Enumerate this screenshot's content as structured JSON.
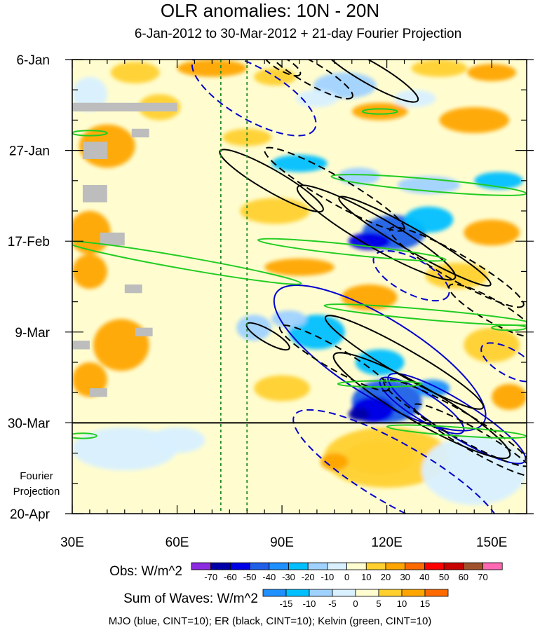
{
  "chart_data": {
    "type": "heatmap",
    "title": "OLR anomalies: 10N - 20N",
    "subtitle": "6-Jan-2012 to 30-Mar-2012 + 21-day Fourier Projection",
    "xlabel": "",
    "ylabel": "",
    "x_range": [
      30,
      160
    ],
    "x_ticks": [
      {
        "value": 30,
        "label": "30E"
      },
      {
        "value": 60,
        "label": "60E"
      },
      {
        "value": 90,
        "label": "90E"
      },
      {
        "value": 120,
        "label": "120E"
      },
      {
        "value": 150,
        "label": "150E"
      }
    ],
    "y_range_days": [
      0,
      105
    ],
    "y_ticks": [
      {
        "day": 0,
        "label": "6-Jan"
      },
      {
        "day": 21,
        "label": "27-Jan"
      },
      {
        "day": 42,
        "label": "17-Feb"
      },
      {
        "day": 63,
        "label": "9-Mar"
      },
      {
        "day": 84,
        "label": "30-Mar"
      },
      {
        "day": 105,
        "label": "20-Apr"
      }
    ],
    "projection_start_day": 84,
    "projection_label": [
      "Fourier",
      "Projection"
    ],
    "dashed_lon_lines": [
      72.5,
      80
    ],
    "obs_legend": {
      "label": "Obs: W/m^2",
      "levels": [
        "-70",
        "-60",
        "-50",
        "-40",
        "-30",
        "-20",
        "-10",
        "0",
        "10",
        "20",
        "30",
        "40",
        "50",
        "60",
        "70"
      ],
      "colors": [
        "#8b2be2",
        "#0000a8",
        "#0000e6",
        "#2060e8",
        "#1e90ff",
        "#00bfff",
        "#a0d2ff",
        "#d8f0ff",
        "#fffdd0",
        "#ffd02e",
        "#ffa500",
        "#ff6a00",
        "#ff0000",
        "#c80000",
        "#a0522d",
        "#ff69b4"
      ]
    },
    "waves_legend": {
      "label": "Sum of Waves: W/m^2",
      "levels": [
        "-15",
        "-10",
        "-5",
        "0",
        "5",
        "10",
        "15"
      ],
      "colors": [
        "#1e90ff",
        "#00bfff",
        "#a0d2ff",
        "#d8f0ff",
        "#fffdd0",
        "#ffd02e",
        "#ffa500",
        "#ff6a00"
      ]
    },
    "footer": "MJO (blue, CINT=10); ER (black, CINT=10); Kelvin (green, CINT=10)",
    "blobs": [
      {
        "lon": 48,
        "day": 3,
        "rx": 7,
        "ry": 2.5,
        "v": 15
      },
      {
        "lon": 70,
        "day": 2,
        "rx": 10,
        "ry": 2,
        "v": 20
      },
      {
        "lon": 88,
        "day": 4,
        "rx": 6,
        "ry": 2,
        "v": 15
      },
      {
        "lon": 135,
        "day": 2,
        "rx": 8,
        "ry": 2,
        "v": 15
      },
      {
        "lon": 150,
        "day": 3,
        "rx": 7,
        "ry": 2,
        "v": 20
      },
      {
        "lon": 108,
        "day": 6,
        "rx": 9,
        "ry": 3,
        "v": -20
      },
      {
        "lon": 100,
        "day": 9,
        "rx": 6,
        "ry": 2,
        "v": -10
      },
      {
        "lon": 35,
        "day": 8,
        "rx": 5,
        "ry": 4,
        "v": -10
      },
      {
        "lon": 40,
        "day": 20,
        "rx": 8,
        "ry": 5,
        "v": 20
      },
      {
        "lon": 55,
        "day": 11,
        "rx": 6,
        "ry": 3,
        "v": 10
      },
      {
        "lon": 118,
        "day": 12,
        "rx": 8,
        "ry": 2,
        "v": 20
      },
      {
        "lon": 145,
        "day": 14,
        "rx": 10,
        "ry": 3,
        "v": 20
      },
      {
        "lon": 128,
        "day": 9,
        "rx": 6,
        "ry": 2,
        "v": -10
      },
      {
        "lon": 80,
        "day": 18,
        "rx": 7,
        "ry": 2,
        "v": 10
      },
      {
        "lon": 95,
        "day": 24,
        "rx": 8,
        "ry": 2,
        "v": -30
      },
      {
        "lon": 112,
        "day": 27,
        "rx": 6,
        "ry": 2,
        "v": -20
      },
      {
        "lon": 132,
        "day": 29,
        "rx": 9,
        "ry": 2,
        "v": -20
      },
      {
        "lon": 152,
        "day": 28,
        "rx": 7,
        "ry": 2,
        "v": -30
      },
      {
        "lon": 35,
        "day": 40,
        "rx": 6,
        "ry": 5,
        "v": 20
      },
      {
        "lon": 35,
        "day": 49,
        "rx": 5,
        "ry": 4,
        "v": 20
      },
      {
        "lon": 88,
        "day": 35,
        "rx": 10,
        "ry": 3,
        "v": 15
      },
      {
        "lon": 122,
        "day": 40,
        "rx": 9,
        "ry": 4,
        "v": -50
      },
      {
        "lon": 115,
        "day": 42,
        "rx": 6,
        "ry": 2,
        "v": -60
      },
      {
        "lon": 132,
        "day": 37,
        "rx": 7,
        "ry": 3,
        "v": -30
      },
      {
        "lon": 150,
        "day": 40,
        "rx": 8,
        "ry": 3,
        "v": 20
      },
      {
        "lon": 95,
        "day": 48,
        "rx": 10,
        "ry": 2,
        "v": 20
      },
      {
        "lon": 140,
        "day": 50,
        "rx": 9,
        "ry": 3,
        "v": 15
      },
      {
        "lon": 115,
        "day": 55,
        "rx": 8,
        "ry": 3,
        "v": 20
      },
      {
        "lon": 82,
        "day": 62,
        "rx": 5,
        "ry": 3,
        "v": -20
      },
      {
        "lon": 100,
        "day": 63,
        "rx": 8,
        "ry": 4,
        "v": -30
      },
      {
        "lon": 92,
        "day": 60,
        "rx": 5,
        "ry": 2,
        "v": -20
      },
      {
        "lon": 44,
        "day": 66,
        "rx": 8,
        "ry": 6,
        "v": 20
      },
      {
        "lon": 35,
        "day": 74,
        "rx": 5,
        "ry": 4,
        "v": 20
      },
      {
        "lon": 118,
        "day": 70,
        "rx": 7,
        "ry": 3,
        "v": -30
      },
      {
        "lon": 150,
        "day": 66,
        "rx": 8,
        "ry": 4,
        "v": 15
      },
      {
        "lon": 120,
        "day": 79,
        "rx": 10,
        "ry": 5,
        "v": -50
      },
      {
        "lon": 116,
        "day": 81,
        "rx": 6,
        "ry": 3,
        "v": -60
      },
      {
        "lon": 112,
        "day": 82,
        "rx": 3,
        "ry": 1.5,
        "v": -70
      },
      {
        "lon": 133,
        "day": 76,
        "rx": 5,
        "ry": 2,
        "v": -40
      },
      {
        "lon": 155,
        "day": 78,
        "rx": 5,
        "ry": 3,
        "v": 20
      },
      {
        "lon": 90,
        "day": 76,
        "rx": 8,
        "ry": 3,
        "v": 15
      },
      {
        "lon": 120,
        "day": 92,
        "rx": 18,
        "ry": 7,
        "v": 10
      },
      {
        "lon": 118,
        "day": 92,
        "rx": 10,
        "ry": 4,
        "v": 15
      },
      {
        "lon": 105,
        "day": 93,
        "rx": 4,
        "ry": 2,
        "v": 20
      },
      {
        "lon": 145,
        "day": 95,
        "rx": 15,
        "ry": 8,
        "v": -5
      },
      {
        "lon": 45,
        "day": 90,
        "rx": 15,
        "ry": 5,
        "v": -5
      },
      {
        "lon": 60,
        "day": 88,
        "rx": 8,
        "ry": 3,
        "v": -5
      }
    ],
    "missing": [
      {
        "lon0": 30,
        "lon1": 60,
        "day0": 10,
        "day1": 12
      },
      {
        "lon0": 47,
        "lon1": 52,
        "day0": 16,
        "day1": 18
      },
      {
        "lon0": 33,
        "lon1": 40,
        "day0": 19,
        "day1": 23
      },
      {
        "lon0": 33,
        "lon1": 40,
        "day0": 29,
        "day1": 33
      },
      {
        "lon0": 38,
        "lon1": 45,
        "day0": 40,
        "day1": 43
      },
      {
        "lon0": 45,
        "lon1": 50,
        "day0": 52,
        "day1": 54
      },
      {
        "lon0": 48,
        "lon1": 53,
        "day0": 62,
        "day1": 64
      },
      {
        "lon0": 30,
        "lon1": 35,
        "day0": 65,
        "day1": 67
      },
      {
        "lon0": 35,
        "lon1": 40,
        "day0": 76,
        "day1": 78
      }
    ],
    "contours": [
      {
        "wave": "MJO",
        "color": "#0000cd",
        "dashed": true,
        "lon": 82,
        "day": 8,
        "rx": 20,
        "ry": 6,
        "rot": 30
      },
      {
        "wave": "MJO",
        "color": "#0000cd",
        "dashed": true,
        "lon": 127,
        "day": 50,
        "rx": 12,
        "ry": 4,
        "rot": 28
      },
      {
        "wave": "MJO",
        "color": "#0000cd",
        "dashed": true,
        "lon": 155,
        "day": 70,
        "rx": 9,
        "ry": 3,
        "rot": 30
      },
      {
        "wave": "MJO",
        "color": "#0000cd",
        "dashed": true,
        "lon": 123,
        "day": 96,
        "rx": 34,
        "ry": 7,
        "rot": 30
      },
      {
        "wave": "MJO",
        "color": "#0000cd",
        "dashed": false,
        "lon": 118,
        "day": 69,
        "rx": 35,
        "ry": 9,
        "rot": 32
      },
      {
        "wave": "MJO",
        "color": "#0000cd",
        "dashed": false,
        "lon": 140,
        "day": 83,
        "rx": 23,
        "ry": 4,
        "rot": 32
      },
      {
        "wave": "MJO",
        "color": "#0000cd",
        "dashed": false,
        "lon": 130,
        "day": 80,
        "rx": 14,
        "ry": 3,
        "rot": 32
      },
      {
        "wave": "ER",
        "color": "#000000",
        "dashed": false,
        "lon": 115,
        "day": 3,
        "rx": 16,
        "ry": 2.5,
        "rot": 30
      },
      {
        "wave": "ER",
        "color": "#000000",
        "dashed": true,
        "lon": 98,
        "day": 3,
        "rx": 14,
        "ry": 2.5,
        "rot": 30
      },
      {
        "wave": "ER",
        "color": "#000000",
        "dashed": true,
        "lon": 90,
        "day": 1,
        "rx": 6,
        "ry": 1.5,
        "rot": 30
      },
      {
        "wave": "ER",
        "color": "#000000",
        "dashed": false,
        "lon": 87,
        "day": 28,
        "rx": 17,
        "ry": 2.5,
        "rot": 30
      },
      {
        "wave": "ER",
        "color": "#000000",
        "dashed": true,
        "lon": 105,
        "day": 30,
        "rx": 23,
        "ry": 3,
        "rot": 30
      },
      {
        "wave": "ER",
        "color": "#000000",
        "dashed": false,
        "lon": 117,
        "day": 40,
        "rx": 26,
        "ry": 3.5,
        "rot": 30
      },
      {
        "wave": "ER",
        "color": "#000000",
        "dashed": false,
        "lon": 128,
        "day": 42,
        "rx": 25,
        "ry": 2.5,
        "rot": 30
      },
      {
        "wave": "ER",
        "color": "#000000",
        "dashed": true,
        "lon": 140,
        "day": 48,
        "rx": 22,
        "ry": 3,
        "rot": 30
      },
      {
        "wave": "ER",
        "color": "#000000",
        "dashed": true,
        "lon": 150,
        "day": 58,
        "rx": 14,
        "ry": 2.5,
        "rot": 30
      },
      {
        "wave": "ER",
        "color": "#000000",
        "dashed": false,
        "lon": 86,
        "day": 64,
        "rx": 7,
        "ry": 1.5,
        "rot": 30
      },
      {
        "wave": "ER",
        "color": "#000000",
        "dashed": true,
        "lon": 105,
        "day": 69,
        "rx": 18,
        "ry": 2.5,
        "rot": 30
      },
      {
        "wave": "ER",
        "color": "#000000",
        "dashed": false,
        "lon": 125,
        "day": 70,
        "rx": 26,
        "ry": 3,
        "rot": 30
      },
      {
        "wave": "ER",
        "color": "#000000",
        "dashed": false,
        "lon": 130,
        "day": 80,
        "rx": 29,
        "ry": 4,
        "rot": 30
      },
      {
        "wave": "ER",
        "color": "#000000",
        "dashed": true,
        "lon": 140,
        "day": 84,
        "rx": 24,
        "ry": 3,
        "rot": 30
      },
      {
        "wave": "ER",
        "color": "#000000",
        "dashed": true,
        "lon": 145,
        "day": 88,
        "rx": 20,
        "ry": 2.5,
        "rot": 30
      },
      {
        "wave": "Kelvin",
        "color": "#22cc22",
        "dashed": false,
        "lon": 132,
        "day": 29,
        "rx": 28,
        "ry": 1.4,
        "rot": 5
      },
      {
        "wave": "Kelvin",
        "color": "#22cc22",
        "dashed": false,
        "lon": 62,
        "day": 47,
        "rx": 34,
        "ry": 1.4,
        "rot": 10
      },
      {
        "wave": "Kelvin",
        "color": "#22cc22",
        "dashed": false,
        "lon": 110,
        "day": 44,
        "rx": 27,
        "ry": 1.2,
        "rot": 6
      },
      {
        "wave": "Kelvin",
        "color": "#22cc22",
        "dashed": false,
        "lon": 132,
        "day": 59,
        "rx": 30,
        "ry": 1.2,
        "rot": 5
      },
      {
        "wave": "Kelvin",
        "color": "#22cc22",
        "dashed": false,
        "lon": 140,
        "day": 86,
        "rx": 20,
        "ry": 1,
        "rot": 4
      },
      {
        "wave": "Kelvin",
        "color": "#22cc22",
        "dashed": false,
        "lon": 35,
        "day": 17,
        "rx": 5,
        "ry": 0.6,
        "rot": 0
      },
      {
        "wave": "Kelvin",
        "color": "#22cc22",
        "dashed": false,
        "lon": 118,
        "day": 12,
        "rx": 5,
        "ry": 0.6,
        "rot": 0
      },
      {
        "wave": "Kelvin",
        "color": "#22cc22",
        "dashed": false,
        "lon": 118,
        "day": 75,
        "rx": 12,
        "ry": 0.7,
        "rot": 0
      },
      {
        "wave": "Kelvin",
        "color": "#22cc22",
        "dashed": false,
        "lon": 155,
        "day": 62,
        "rx": 5,
        "ry": 0.6,
        "rot": 0
      },
      {
        "wave": "Kelvin",
        "color": "#22cc22",
        "dashed": false,
        "lon": 33,
        "day": 87,
        "rx": 4,
        "ry": 0.6,
        "rot": 0
      }
    ]
  }
}
